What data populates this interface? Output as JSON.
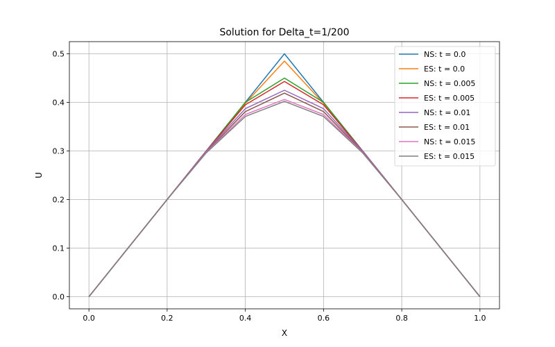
{
  "chart_data": {
    "type": "line",
    "title": "Solution for Delta_t=1/200",
    "xlabel": "X",
    "ylabel": "U",
    "xlim": [
      -0.05,
      1.05
    ],
    "ylim": [
      -0.025,
      0.525
    ],
    "xticks": [
      0.0,
      0.2,
      0.4,
      0.6,
      0.8,
      1.0
    ],
    "xtick_labels": [
      "0.0",
      "0.2",
      "0.4",
      "0.6",
      "0.8",
      "1.0"
    ],
    "yticks": [
      0.0,
      0.1,
      0.2,
      0.3,
      0.4,
      0.5
    ],
    "ytick_labels": [
      "0.0",
      "0.1",
      "0.2",
      "0.3",
      "0.4",
      "0.5"
    ],
    "grid": true,
    "legend_position": "top-right",
    "x": [
      0.0,
      0.1,
      0.2,
      0.3,
      0.4,
      0.5,
      0.6,
      0.7,
      0.8,
      0.9,
      1.0
    ],
    "series": [
      {
        "name": "NS: t = 0.0",
        "color": "#1f77b4",
        "values": [
          0.0,
          0.1,
          0.2,
          0.3,
          0.4,
          0.5,
          0.4,
          0.3,
          0.2,
          0.1,
          0.0
        ]
      },
      {
        "name": "ES: t = 0.0",
        "color": "#ff7f0e",
        "values": [
          0.0,
          0.1,
          0.2,
          0.3,
          0.398,
          0.485,
          0.398,
          0.3,
          0.2,
          0.1,
          0.0
        ]
      },
      {
        "name": "NS: t = 0.005",
        "color": "#2ca02c",
        "values": [
          0.0,
          0.1,
          0.2,
          0.3,
          0.4,
          0.45,
          0.4,
          0.3,
          0.2,
          0.1,
          0.0
        ]
      },
      {
        "name": "ES: t = 0.005",
        "color": "#d62728",
        "values": [
          0.0,
          0.1,
          0.2,
          0.3,
          0.395,
          0.443,
          0.395,
          0.3,
          0.2,
          0.1,
          0.0
        ]
      },
      {
        "name": "NS: t = 0.01",
        "color": "#9467bd",
        "values": [
          0.0,
          0.1,
          0.2,
          0.3,
          0.387,
          0.425,
          0.387,
          0.3,
          0.2,
          0.1,
          0.0
        ]
      },
      {
        "name": "ES: t = 0.01",
        "color": "#8c564b",
        "values": [
          0.0,
          0.1,
          0.2,
          0.298,
          0.381,
          0.419,
          0.381,
          0.298,
          0.2,
          0.1,
          0.0
        ]
      },
      {
        "name": "NS: t = 0.015",
        "color": "#e377c2",
        "values": [
          0.0,
          0.1,
          0.2,
          0.297,
          0.375,
          0.406,
          0.375,
          0.297,
          0.2,
          0.1,
          0.0
        ]
      },
      {
        "name": "ES: t = 0.015",
        "color": "#7f7f7f",
        "values": [
          0.0,
          0.1,
          0.2,
          0.296,
          0.371,
          0.402,
          0.371,
          0.296,
          0.2,
          0.1,
          0.0
        ]
      }
    ]
  }
}
